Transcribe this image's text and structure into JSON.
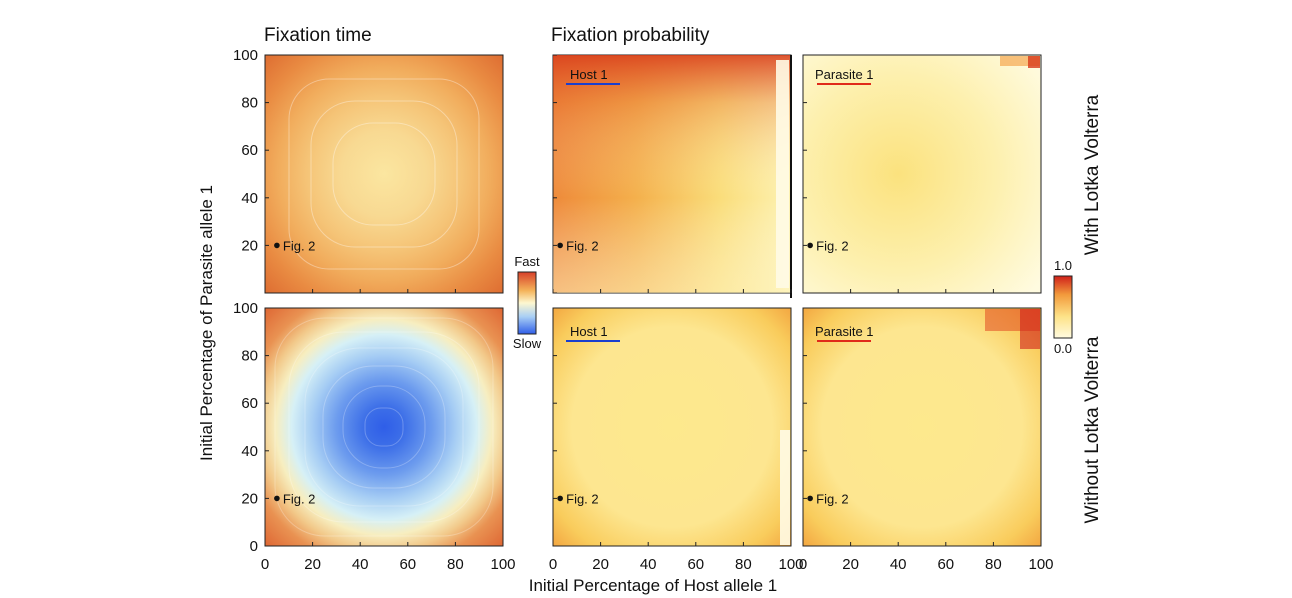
{
  "titles": {
    "left": "Fixation time",
    "middle": "Fixation probability"
  },
  "row_labels": {
    "top": "With Lotka Volterra",
    "bottom": "Without Lotka Volterra"
  },
  "axes": {
    "xlabel": "Initial Percentage of Host allele 1",
    "ylabel": "Initial Percentage of Parasite allele 1",
    "ticks": [
      "0",
      "20",
      "40",
      "60",
      "80",
      "100"
    ]
  },
  "time_colorbar": {
    "top_label": "Fast",
    "bottom_label": "Slow"
  },
  "prob_colorbar": {
    "max_label": "1.0",
    "min_label": "0.0"
  },
  "panel_labels": {
    "host": "Host 1",
    "parasite": "Parasite 1"
  },
  "marker_label": "Fig. 2",
  "colors": {
    "host_line": "#1a3fcf",
    "parasite_line": "#e02a1a",
    "fast": "#d7402a",
    "slow": "#2f5ee8",
    "prob_low": "#fffbe0",
    "prob_high": "#d0201a"
  },
  "chart_data": [
    {
      "type": "heatmap",
      "title": "Fixation time",
      "row": "With Lotka Volterra",
      "xlabel": "Initial Percentage of Host allele 1",
      "ylabel": "Initial Percentage of Parasite allele 1",
      "xlim": [
        0,
        100
      ],
      "ylim": [
        0,
        100
      ],
      "x_ticks": [
        0,
        20,
        40,
        60,
        80,
        100
      ],
      "y_ticks": [
        0,
        20,
        40,
        60,
        80,
        100
      ],
      "colorscale": "Fast (orange-red) to Slow (blue)",
      "description_values": {
        "corners": "fast",
        "center": "moderate (pale yellow)",
        "peak_at": [
          50,
          50
        ]
      },
      "marker": {
        "label": "Fig. 2",
        "x": 5,
        "y": 20
      }
    },
    {
      "type": "heatmap",
      "title": "Fixation time",
      "row": "Without Lotka Volterra",
      "xlim": [
        0,
        100
      ],
      "ylim": [
        0,
        100
      ],
      "colorscale": "Fast (orange-red) to Slow (blue)",
      "description_values": {
        "corners": "fast",
        "center": "slow (blue)",
        "peak_at": [
          50,
          50
        ]
      },
      "marker": {
        "label": "Fig. 2",
        "x": 5,
        "y": 20
      }
    },
    {
      "type": "heatmap",
      "title": "Fixation probability",
      "panel": "Host 1",
      "row": "With Lotka Volterra",
      "xlim": [
        0,
        100
      ],
      "ylim": [
        0,
        100
      ],
      "colorscale_range": [
        0.0,
        1.0
      ],
      "marker": {
        "label": "Fig. 2",
        "x": 3,
        "y": 20
      }
    },
    {
      "type": "heatmap",
      "title": "Fixation probability",
      "panel": "Parasite 1",
      "row": "With Lotka Volterra",
      "xlim": [
        0,
        100
      ],
      "ylim": [
        0,
        100
      ],
      "colorscale_range": [
        0.0,
        1.0
      ],
      "marker": {
        "label": "Fig. 2",
        "x": 3,
        "y": 20
      }
    },
    {
      "type": "heatmap",
      "title": "Fixation probability",
      "panel": "Host 1",
      "row": "Without Lotka Volterra",
      "xlim": [
        0,
        100
      ],
      "ylim": [
        0,
        100
      ],
      "colorscale_range": [
        0.0,
        1.0
      ],
      "marker": {
        "label": "Fig. 2",
        "x": 3,
        "y": 20
      }
    },
    {
      "type": "heatmap",
      "title": "Fixation probability",
      "panel": "Parasite 1",
      "row": "Without Lotka Volterra",
      "xlim": [
        0,
        100
      ],
      "ylim": [
        0,
        100
      ],
      "colorscale_range": [
        0.0,
        1.0
      ],
      "marker": {
        "label": "Fig. 2",
        "x": 3,
        "y": 20
      }
    }
  ]
}
